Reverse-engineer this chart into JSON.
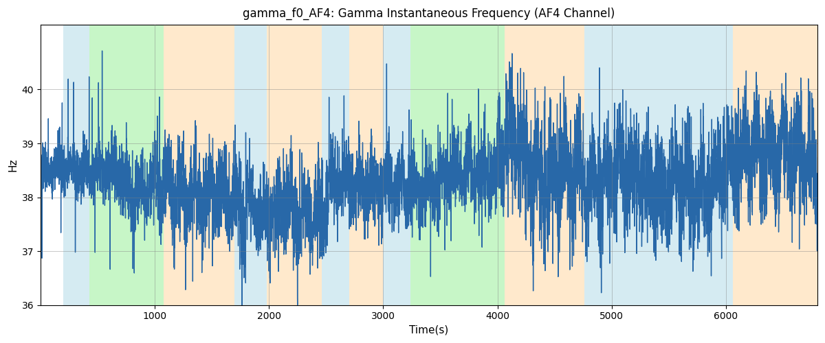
{
  "title": "gamma_f0_AF4: Gamma Instantaneous Frequency (AF4 Channel)",
  "xlabel": "Time(s)",
  "ylabel": "Hz",
  "xlim": [
    0,
    6800
  ],
  "ylim": [
    36,
    41.2
  ],
  "yticks": [
    36,
    37,
    38,
    39,
    40
  ],
  "xticks": [
    1000,
    2000,
    3000,
    4000,
    5000,
    6000
  ],
  "line_color": "#2868a8",
  "line_width": 1.0,
  "bg_bands": [
    {
      "xmin": 200,
      "xmax": 430,
      "color": "#add8e6",
      "alpha": 0.5
    },
    {
      "xmin": 430,
      "xmax": 1080,
      "color": "#90ee90",
      "alpha": 0.5
    },
    {
      "xmin": 1080,
      "xmax": 1700,
      "color": "#ffd59a",
      "alpha": 0.5
    },
    {
      "xmin": 1700,
      "xmax": 1980,
      "color": "#add8e6",
      "alpha": 0.5
    },
    {
      "xmin": 1980,
      "xmax": 2460,
      "color": "#ffd59a",
      "alpha": 0.5
    },
    {
      "xmin": 2460,
      "xmax": 2700,
      "color": "#add8e6",
      "alpha": 0.5
    },
    {
      "xmin": 2700,
      "xmax": 3000,
      "color": "#ffd59a",
      "alpha": 0.5
    },
    {
      "xmin": 3000,
      "xmax": 3240,
      "color": "#add8e6",
      "alpha": 0.5
    },
    {
      "xmin": 3240,
      "xmax": 4060,
      "color": "#90ee90",
      "alpha": 0.5
    },
    {
      "xmin": 4060,
      "xmax": 4760,
      "color": "#ffd59a",
      "alpha": 0.5
    },
    {
      "xmin": 4760,
      "xmax": 6060,
      "color": "#add8e6",
      "alpha": 0.5
    },
    {
      "xmin": 6060,
      "xmax": 6800,
      "color": "#ffd59a",
      "alpha": 0.5
    }
  ],
  "seed": 137,
  "n_points": 6800,
  "base_freq": 38.2
}
